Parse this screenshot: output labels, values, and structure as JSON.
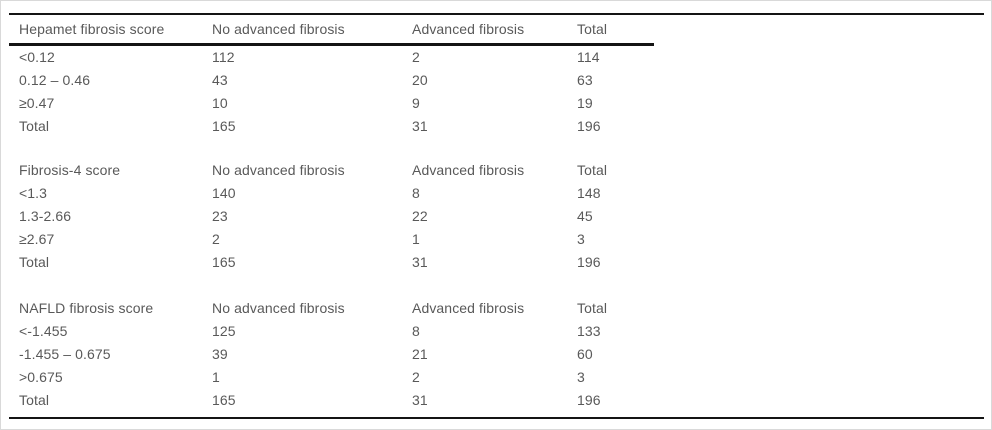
{
  "page": {
    "background_color": "#ffffff",
    "frame_border_color": "#d9d9d9",
    "rule_color": "#141414",
    "text_color": "#595959"
  },
  "table": {
    "columns": [
      "No advanced fibrosis",
      "Advanced fibrosis",
      "Total"
    ],
    "sections": [
      {
        "label": "Hepamet fibrosis score",
        "rows": [
          {
            "label": "<0.12",
            "values": [
              "112",
              "2",
              "114"
            ]
          },
          {
            "label": "0.12 – 0.46",
            "values": [
              "43",
              "20",
              "63"
            ]
          },
          {
            "label": "≥0.47",
            "values": [
              "10",
              "9",
              "19"
            ]
          },
          {
            "label": "Total",
            "values": [
              "165",
              "31",
              "196"
            ]
          }
        ]
      },
      {
        "label": "Fibrosis-4 score",
        "rows": [
          {
            "label": "<1.3",
            "values": [
              "140",
              "8",
              "148"
            ]
          },
          {
            "label": "1.3-2.66",
            "values": [
              "23",
              "22",
              "45"
            ]
          },
          {
            "label": "≥2.67",
            "values": [
              "2",
              "1",
              "3"
            ]
          },
          {
            "label": "Total",
            "values": [
              "165",
              "31",
              "196"
            ]
          }
        ]
      },
      {
        "label": "NAFLD fibrosis score",
        "rows": [
          {
            "label": "<-1.455",
            "values": [
              "125",
              "8",
              "133"
            ]
          },
          {
            "label": "-1.455 – 0.675",
            "values": [
              "39",
              "21",
              "60"
            ]
          },
          {
            "label": ">0.675",
            "values": [
              "1",
              "2",
              "3"
            ]
          },
          {
            "label": "Total",
            "values": [
              "165",
              "31",
              "196"
            ]
          }
        ]
      }
    ]
  }
}
